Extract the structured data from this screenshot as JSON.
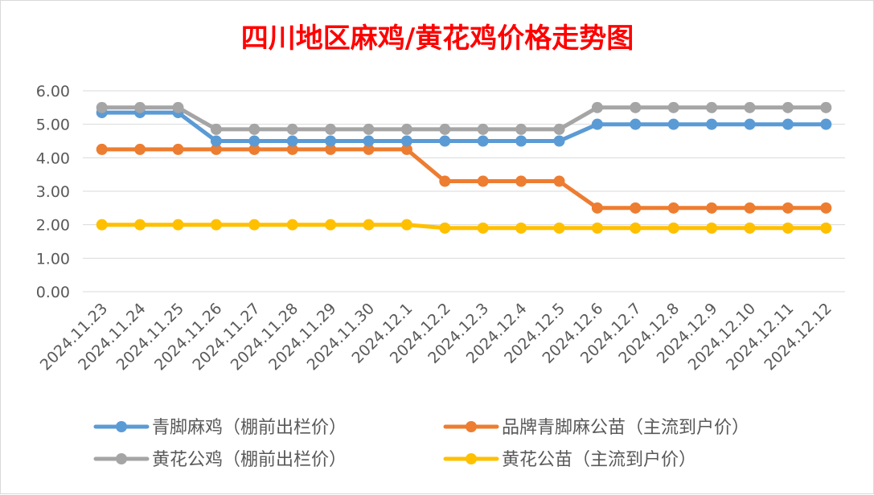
{
  "chart_data": {
    "type": "line",
    "title": "四川地区麻鸡/黄花鸡价格走势图",
    "x": [
      "2024.11.23",
      "2024.11.24",
      "2024.11.25",
      "2024.11.26",
      "2024.11.27",
      "2024.11.28",
      "2024.11.29",
      "2024.11.30",
      "2024.12.1",
      "2024.12.2",
      "2024.12.3",
      "2024.12.4",
      "2024.12.5",
      "2024.12.6",
      "2024.12.7",
      "2024.12.8",
      "2024.12.9",
      "2024.12.10",
      "2024.12.11",
      "2024.12.12"
    ],
    "ylim": [
      0,
      6
    ],
    "yticks": [
      "0.00",
      "1.00",
      "2.00",
      "3.00",
      "4.00",
      "5.00",
      "6.00"
    ],
    "grid": true,
    "legend_position": "bottom",
    "series": [
      {
        "name": "青脚麻鸡（棚前出栏价）",
        "color": "#5b9bd5",
        "values": [
          5.35,
          5.35,
          5.35,
          4.5,
          4.5,
          4.5,
          4.5,
          4.5,
          4.5,
          4.5,
          4.5,
          4.5,
          4.5,
          5.0,
          5.0,
          5.0,
          5.0,
          5.0,
          5.0,
          5.0
        ]
      },
      {
        "name": "品牌青脚麻公苗（主流到户价）",
        "color": "#ed7d31",
        "values": [
          4.25,
          4.25,
          4.25,
          4.25,
          4.25,
          4.25,
          4.25,
          4.25,
          4.25,
          3.3,
          3.3,
          3.3,
          3.3,
          2.5,
          2.5,
          2.5,
          2.5,
          2.5,
          2.5,
          2.5
        ]
      },
      {
        "name": "黄花公鸡（棚前出栏价）",
        "color": "#a5a5a5",
        "values": [
          5.5,
          5.5,
          5.5,
          4.85,
          4.85,
          4.85,
          4.85,
          4.85,
          4.85,
          4.85,
          4.85,
          4.85,
          4.85,
          5.5,
          5.5,
          5.5,
          5.5,
          5.5,
          5.5,
          5.5
        ]
      },
      {
        "name": "黄花公苗（主流到户价）",
        "color": "#ffc000",
        "values": [
          2.0,
          2.0,
          2.0,
          2.0,
          2.0,
          2.0,
          2.0,
          2.0,
          2.0,
          1.9,
          1.9,
          1.9,
          1.9,
          1.9,
          1.9,
          1.9,
          1.9,
          1.9,
          1.9,
          1.9
        ]
      }
    ]
  }
}
